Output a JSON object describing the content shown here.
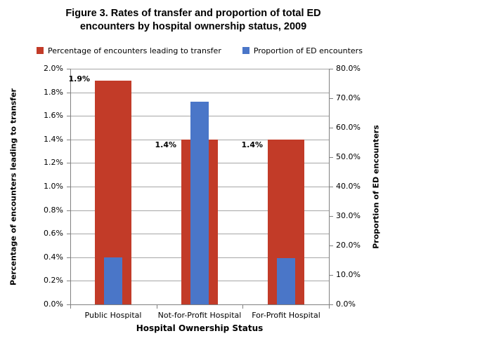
{
  "title_lines": [
    "Figure 3. Rates of transfer and proportion of total ED",
    "encounters by hospital ownership status, 2009"
  ],
  "chart_data": {
    "type": "bar",
    "title": "Figure 3. Rates of transfer and proportion of total ED encounters by hospital ownership status, 2009",
    "categories": [
      "Public Hospital",
      "Not-for-Profit Hospital",
      "For-Profit Hospital"
    ],
    "series": [
      {
        "name": "Percentage of encounters leading to transfer",
        "axis": "left",
        "color": "#c23b28",
        "values": [
          1.9,
          1.4,
          1.4
        ],
        "data_labels": [
          "1.9%",
          "1.4%",
          "1.4%"
        ]
      },
      {
        "name": "Proportion of ED encounters",
        "axis": "right",
        "color": "#4a76c8",
        "values": [
          16.0,
          68.8,
          15.7
        ],
        "data_labels": [
          null,
          null,
          null
        ]
      }
    ],
    "xlabel": "Hospital Ownership Status",
    "ylabel_left": "Percentage of encounters leading to transfer",
    "ylabel_right": "Proportion of ED encounters",
    "left_axis": {
      "min": 0,
      "max": 2.0,
      "step": 0.2,
      "tick_labels": [
        "0.0%",
        "0.2%",
        "0.4%",
        "0.6%",
        "0.8%",
        "1.0%",
        "1.2%",
        "1.4%",
        "1.6%",
        "1.8%",
        "2.0%"
      ]
    },
    "right_axis": {
      "min": 0,
      "max": 80,
      "step": 10,
      "tick_labels": [
        "0.0%",
        "10.0%",
        "20.0%",
        "30.0%",
        "40.0%",
        "50.0%",
        "60.0%",
        "70.0%",
        "80.0%"
      ]
    },
    "grid": true,
    "legend_position": "top"
  },
  "colors": {
    "red": "#c23b28",
    "blue": "#4a76c8",
    "gridline": "#a6a6a6",
    "axis": "#808080",
    "text": "#000000",
    "background": "#ffffff"
  }
}
